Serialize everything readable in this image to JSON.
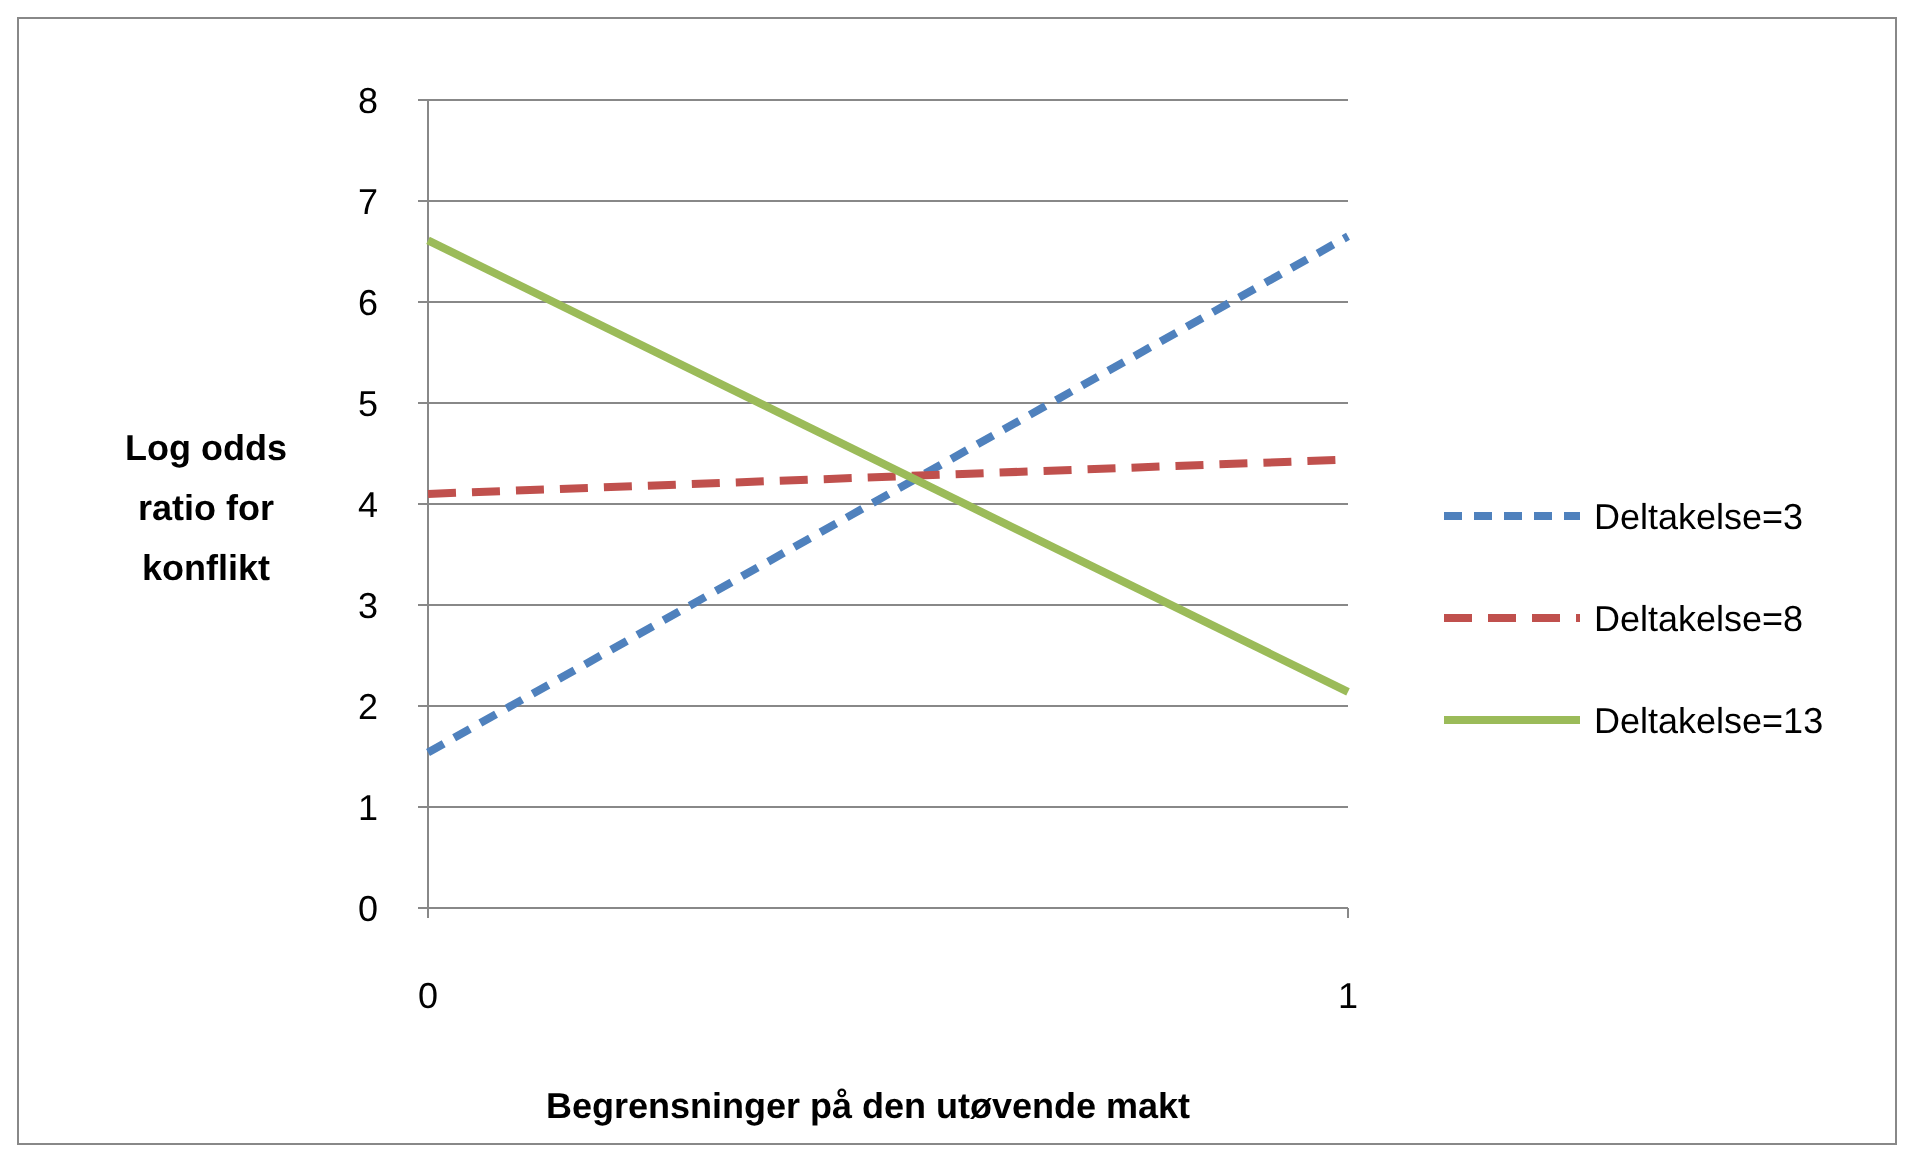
{
  "chart_data": {
    "type": "line",
    "xlabel": "Begrensninger på den utøvende makt",
    "ylabel": "Log odds ratio for konflikt",
    "x": [
      0,
      1
    ],
    "xlim": [
      0,
      1
    ],
    "xticks": [
      0,
      1
    ],
    "ylim": [
      0,
      8
    ],
    "yticks": [
      0,
      1,
      2,
      3,
      4,
      5,
      6,
      7,
      8
    ],
    "grid": "y",
    "legend": "right",
    "marker": "none",
    "series": [
      {
        "name": "Deltakelse=3",
        "color": "#4f81bd",
        "values": [
          1.54,
          6.65
        ],
        "line_style": "dashed"
      },
      {
        "name": "Deltakelse=8",
        "color": "#c0504d",
        "values": [
          4.1,
          4.44
        ],
        "line_style": "dashed"
      },
      {
        "name": "Deltakelse=13",
        "color": "#9bbb59",
        "values": [
          6.61,
          2.14
        ],
        "line_style": "solid"
      }
    ]
  }
}
